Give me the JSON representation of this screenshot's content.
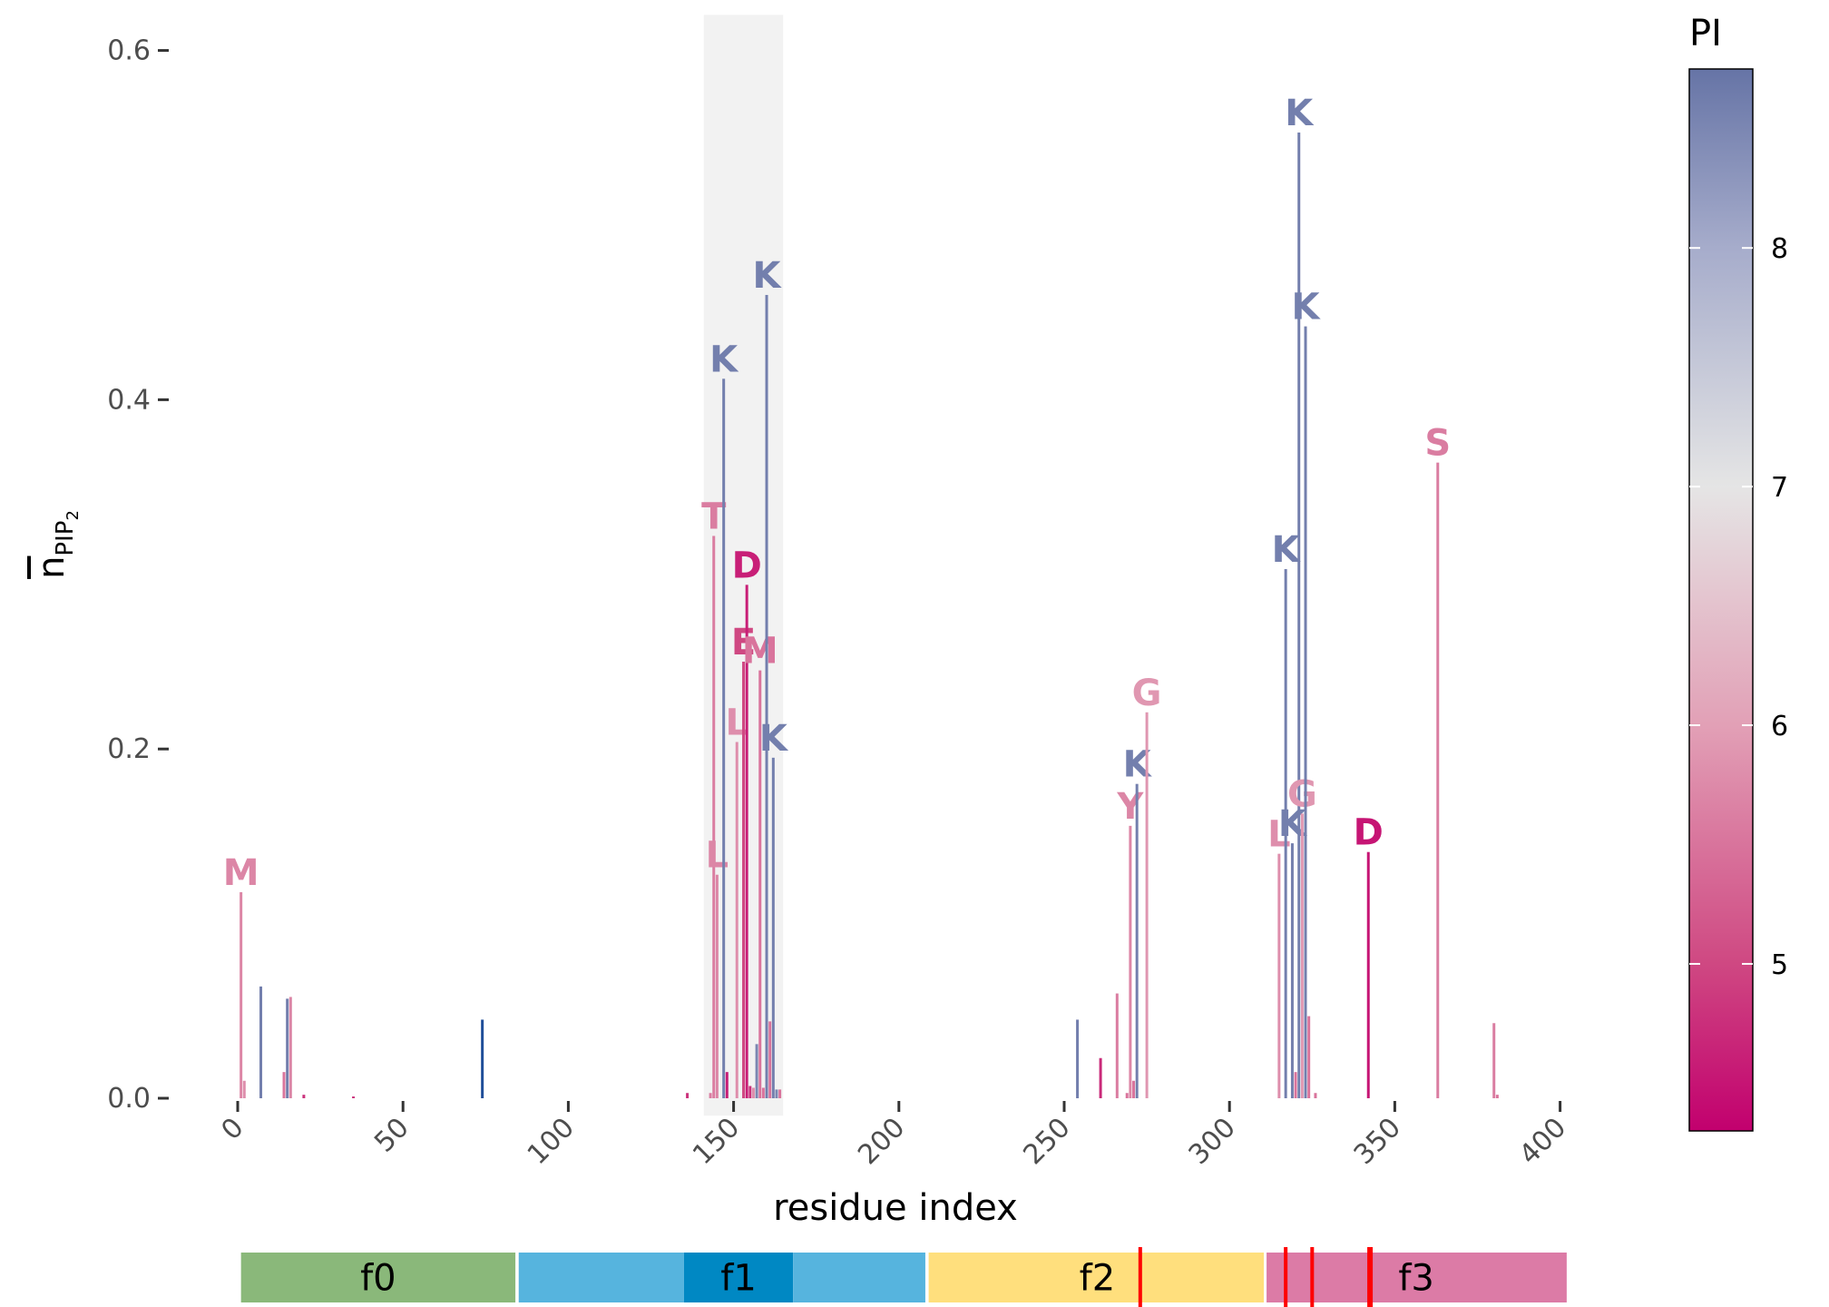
{
  "chart_data": {
    "type": "bar",
    "title": "",
    "xlabel": "residue index",
    "ylabel_main": "n",
    "ylabel_sub": "PIP",
    "ylabel_subsub": "2",
    "xlim": [
      -5,
      405
    ],
    "ylim": [
      -0.01,
      0.61
    ],
    "x_ticks": [
      0,
      50,
      100,
      150,
      200,
      250,
      300,
      350,
      400
    ],
    "x_tick_labels": [
      "0",
      "50",
      "100",
      "150",
      "200",
      "250",
      "300",
      "350",
      "400"
    ],
    "y_ticks": [
      0.0,
      0.2,
      0.4,
      0.6
    ],
    "y_tick_labels": [
      "0.0",
      "0.2",
      "0.4",
      "0.6"
    ],
    "grid": false,
    "highlight_region": [
      141,
      165
    ],
    "colorbar": {
      "title": "PI",
      "min": 4.3,
      "max": 8.75,
      "ticks": [
        5,
        6,
        7,
        8
      ],
      "tick_labels": [
        "5",
        "6",
        "7",
        "8"
      ],
      "stops": [
        {
          "v": 4.3,
          "c": "#c2006e"
        },
        {
          "v": 5.0,
          "c": "#cf4882"
        },
        {
          "v": 6.0,
          "c": "#e2a0b6"
        },
        {
          "v": 7.0,
          "c": "#e5e5e5"
        },
        {
          "v": 8.0,
          "c": "#a6accb"
        },
        {
          "v": 8.75,
          "c": "#6674a6"
        }
      ]
    },
    "bars": [
      {
        "x": 1,
        "y": 0.118,
        "pi": 5.7,
        "label": "M"
      },
      {
        "x": 2,
        "y": 0.01,
        "pi": 5.8
      },
      {
        "x": 7,
        "y": 0.064,
        "pi": 8.6
      },
      {
        "x": 14,
        "y": 0.015,
        "pi": 5.5
      },
      {
        "x": 15,
        "y": 0.057,
        "pi": 8.6
      },
      {
        "x": 16,
        "y": 0.058,
        "pi": 5.7
      },
      {
        "x": 20,
        "y": 0.002,
        "pi": 4.8
      },
      {
        "x": 35,
        "y": 0.001,
        "pi": 4.8
      },
      {
        "x": 74,
        "y": 0.045,
        "pi": 10.5
      },
      {
        "x": 136,
        "y": 0.003,
        "pi": 4.8
      },
      {
        "x": 143,
        "y": 0.003,
        "pi": 5.6
      },
      {
        "x": 144,
        "y": 0.322,
        "pi": 5.6,
        "label": "T"
      },
      {
        "x": 145,
        "y": 0.128,
        "pi": 5.7,
        "label": "L"
      },
      {
        "x": 147,
        "y": 0.412,
        "pi": 8.6,
        "label": "K"
      },
      {
        "x": 148,
        "y": 0.015,
        "pi": 4.6
      },
      {
        "x": 151,
        "y": 0.204,
        "pi": 5.8,
        "label": "L"
      },
      {
        "x": 153,
        "y": 0.25,
        "pi": 5.0,
        "label": "E"
      },
      {
        "x": 154,
        "y": 0.294,
        "pi": 4.6,
        "label": "D"
      },
      {
        "x": 155,
        "y": 0.007,
        "pi": 4.8
      },
      {
        "x": 156,
        "y": 0.006,
        "pi": 5.8
      },
      {
        "x": 157,
        "y": 0.031,
        "pi": 8.5
      },
      {
        "x": 158,
        "y": 0.245,
        "pi": 5.5,
        "label": "M"
      },
      {
        "x": 159,
        "y": 0.006,
        "pi": 5.5
      },
      {
        "x": 160,
        "y": 0.46,
        "pi": 8.6,
        "label": "K"
      },
      {
        "x": 161,
        "y": 0.044,
        "pi": 5.5
      },
      {
        "x": 162,
        "y": 0.195,
        "pi": 8.6,
        "label": "K"
      },
      {
        "x": 163,
        "y": 0.005,
        "pi": 8.5
      },
      {
        "x": 164,
        "y": 0.005,
        "pi": 5.5
      },
      {
        "x": 254,
        "y": 0.045,
        "pi": 8.6
      },
      {
        "x": 261,
        "y": 0.023,
        "pi": 4.7
      },
      {
        "x": 266,
        "y": 0.06,
        "pi": 5.6
      },
      {
        "x": 269,
        "y": 0.003,
        "pi": 5.5
      },
      {
        "x": 270,
        "y": 0.156,
        "pi": 5.7,
        "label": "Y"
      },
      {
        "x": 271,
        "y": 0.01,
        "pi": 5.5
      },
      {
        "x": 272,
        "y": 0.18,
        "pi": 8.6,
        "label": "K"
      },
      {
        "x": 275,
        "y": 0.221,
        "pi": 5.9,
        "label": "G"
      },
      {
        "x": 315,
        "y": 0.14,
        "pi": 5.8,
        "label": "L"
      },
      {
        "x": 317,
        "y": 0.303,
        "pi": 8.6,
        "label": "K"
      },
      {
        "x": 319,
        "y": 0.146,
        "pi": 8.6,
        "label": "K"
      },
      {
        "x": 320,
        "y": 0.015,
        "pi": 5.5
      },
      {
        "x": 321,
        "y": 0.553,
        "pi": 8.6,
        "label": "K"
      },
      {
        "x": 322,
        "y": 0.163,
        "pi": 5.9,
        "label": "G"
      },
      {
        "x": 323,
        "y": 0.442,
        "pi": 8.6,
        "label": "K"
      },
      {
        "x": 324,
        "y": 0.047,
        "pi": 5.5
      },
      {
        "x": 326,
        "y": 0.003,
        "pi": 5.5
      },
      {
        "x": 342,
        "y": 0.141,
        "pi": 4.5,
        "label": "D"
      },
      {
        "x": 363,
        "y": 0.364,
        "pi": 5.6,
        "label": "S"
      },
      {
        "x": 380,
        "y": 0.043,
        "pi": 5.6
      },
      {
        "x": 381,
        "y": 0.002,
        "pi": 5.5
      }
    ],
    "fragments": [
      {
        "label": "f0",
        "start": 1,
        "end": 84,
        "color": "#8ab87a"
      },
      {
        "label": "",
        "start": 85,
        "end": 135,
        "color": "#56b4de"
      },
      {
        "label": "f1",
        "start": 135,
        "end": 168,
        "color": "#0088c3"
      },
      {
        "label": "",
        "start": 168,
        "end": 208,
        "color": "#56b4de"
      },
      {
        "label": "f2",
        "start": 209,
        "end": 311,
        "color": "#ffdf7d"
      },
      {
        "label": "f3",
        "start": 311,
        "end": 402,
        "color": "#dc7ba6"
      }
    ],
    "fragment_markers": [
      273,
      317,
      325,
      342.5
    ]
  }
}
